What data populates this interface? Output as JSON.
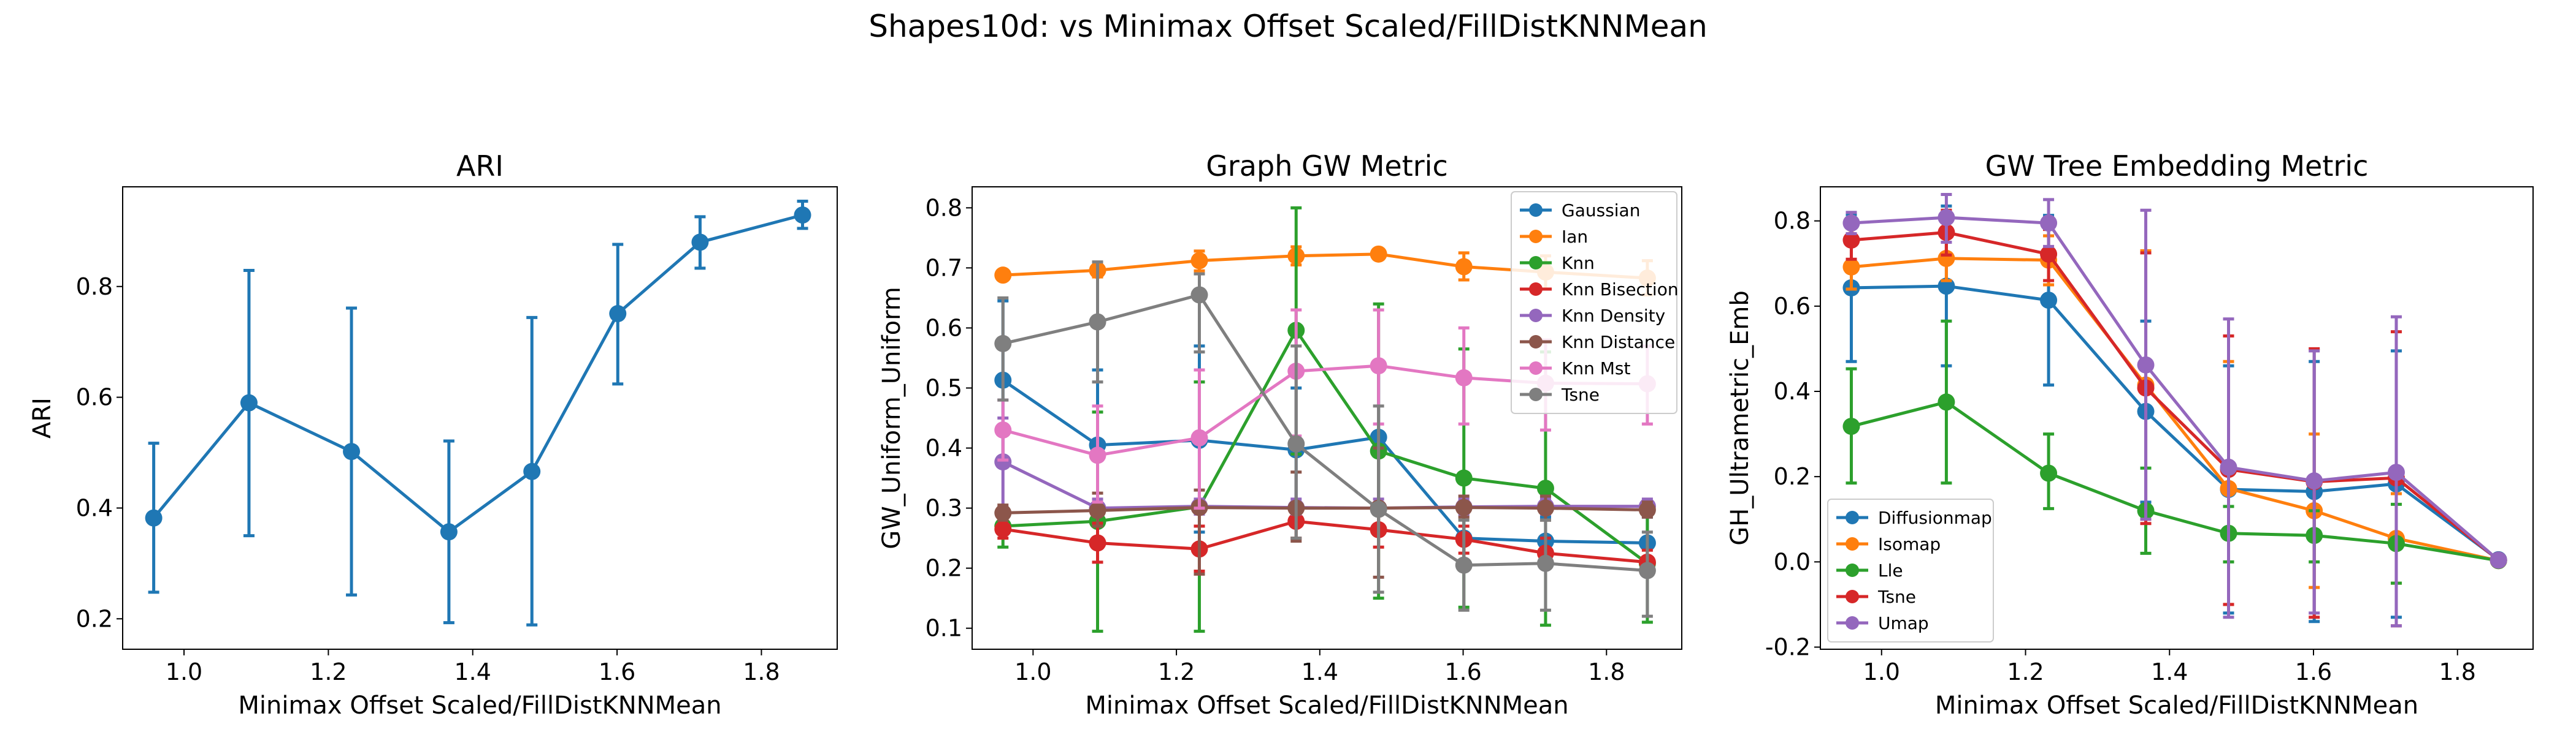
{
  "figure_title": "Shapes10d: vs Minimax Offset Scaled/FillDistKNNMean",
  "colors": {
    "blue": "#1f77b4",
    "orange": "#ff7f0e",
    "green": "#2ca02c",
    "red": "#d62728",
    "purple": "#9467bd",
    "brown": "#8c564b",
    "pink": "#e377c2",
    "gray": "#7f7f7f"
  },
  "chart_data": [
    {
      "type": "line",
      "title": "ARI",
      "xlabel": "Minimax Offset Scaled/FillDistKNNMean",
      "ylabel": "ARI",
      "xlim": [
        0.915,
        1.905
      ],
      "ylim": [
        0.145,
        0.98
      ],
      "xticks": [
        1.0,
        1.2,
        1.4,
        1.6,
        1.8
      ],
      "yticks": [
        0.2,
        0.4,
        0.6,
        0.8
      ],
      "grid": false,
      "legend": null,
      "x": [
        0.958,
        1.09,
        1.232,
        1.367,
        1.482,
        1.601,
        1.715,
        1.857
      ],
      "series": [
        {
          "color": "#1f77b4",
          "values": [
            0.382,
            0.59,
            0.502,
            0.357,
            0.466,
            0.751,
            0.88,
            0.929
          ],
          "err_low": [
            0.248,
            0.35,
            0.243,
            0.193,
            0.189,
            0.624,
            0.833,
            0.905
          ],
          "err_high": [
            0.517,
            0.829,
            0.761,
            0.521,
            0.744,
            0.876,
            0.926,
            0.954
          ]
        }
      ]
    },
    {
      "type": "line",
      "title": "Graph GW Metric",
      "xlabel": "Minimax Offset Scaled/FillDistKNNMean",
      "ylabel": "GW_Uniform_Uniform",
      "xlim": [
        0.915,
        1.905
      ],
      "ylim": [
        0.065,
        0.835
      ],
      "xticks": [
        1.0,
        1.2,
        1.4,
        1.6,
        1.8
      ],
      "yticks": [
        0.1,
        0.2,
        0.3,
        0.4,
        0.5,
        0.6,
        0.7,
        0.8
      ],
      "grid": false,
      "legend": "top-right",
      "x": [
        0.958,
        1.09,
        1.232,
        1.367,
        1.482,
        1.601,
        1.715,
        1.857
      ],
      "series": [
        {
          "name": "Gaussian",
          "color": "#1f77b4",
          "values": [
            0.513,
            0.405,
            0.413,
            0.397,
            0.418,
            0.25,
            0.245,
            0.242
          ],
          "err_low": [
            0.385,
            0.29,
            0.26,
            0.3,
            0.3,
            0.205,
            0.21,
            0.2
          ],
          "err_high": [
            0.645,
            0.53,
            0.57,
            0.5,
            0.53,
            0.3,
            0.285,
            0.285
          ]
        },
        {
          "name": "Ian",
          "color": "#ff7f0e",
          "values": [
            0.688,
            0.696,
            0.712,
            0.72,
            0.723,
            0.702,
            0.693,
            0.683
          ],
          "err_low": [
            0.68,
            0.685,
            0.695,
            0.705,
            0.715,
            0.68,
            0.665,
            0.655
          ],
          "err_high": [
            0.696,
            0.708,
            0.728,
            0.735,
            0.731,
            0.725,
            0.72,
            0.712
          ]
        },
        {
          "name": "Knn",
          "color": "#2ca02c",
          "values": [
            0.27,
            0.278,
            0.302,
            0.596,
            0.395,
            0.35,
            0.333,
            0.208
          ],
          "err_low": [
            0.235,
            0.095,
            0.095,
            0.39,
            0.15,
            0.135,
            0.105,
            0.11
          ],
          "err_high": [
            0.3,
            0.46,
            0.51,
            0.8,
            0.64,
            0.565,
            0.56,
            0.31
          ]
        },
        {
          "name": "Knn Bisection",
          "color": "#d62728",
          "values": [
            0.265,
            0.242,
            0.232,
            0.278,
            0.264,
            0.248,
            0.225,
            0.21
          ],
          "err_low": [
            0.25,
            0.21,
            0.195,
            0.25,
            0.235,
            0.225,
            0.2,
            0.19
          ],
          "err_high": [
            0.28,
            0.275,
            0.27,
            0.305,
            0.295,
            0.27,
            0.25,
            0.23
          ]
        },
        {
          "name": "Knn Density",
          "color": "#9467bd",
          "values": [
            0.377,
            0.3,
            0.303,
            0.301,
            0.3,
            0.302,
            0.303,
            0.303
          ],
          "err_low": [
            0.3,
            0.29,
            0.29,
            0.29,
            0.29,
            0.29,
            0.29,
            0.29
          ],
          "err_high": [
            0.45,
            0.315,
            0.315,
            0.315,
            0.315,
            0.315,
            0.315,
            0.315
          ]
        },
        {
          "name": "Knn Distance",
          "color": "#8c564b",
          "values": [
            0.292,
            0.296,
            0.301,
            0.3,
            0.3,
            0.301,
            0.3,
            0.297
          ],
          "err_low": [
            0.28,
            0.27,
            0.19,
            0.245,
            0.185,
            0.285,
            0.28,
            0.285
          ],
          "err_high": [
            0.305,
            0.325,
            0.33,
            0.36,
            0.4,
            0.32,
            0.32,
            0.31
          ]
        },
        {
          "name": "Knn Mst",
          "color": "#e377c2",
          "values": [
            0.43,
            0.388,
            0.417,
            0.528,
            0.537,
            0.517,
            0.508,
            0.507
          ],
          "err_low": [
            0.38,
            0.31,
            0.3,
            0.42,
            0.44,
            0.44,
            0.43,
            0.44
          ],
          "err_high": [
            0.48,
            0.47,
            0.53,
            0.63,
            0.63,
            0.6,
            0.58,
            0.57
          ]
        },
        {
          "name": "Tsne",
          "color": "#7f7f7f",
          "values": [
            0.574,
            0.61,
            0.655,
            0.407,
            0.298,
            0.205,
            0.208,
            0.196
          ],
          "err_low": [
            0.48,
            0.51,
            0.56,
            0.25,
            0.16,
            0.13,
            0.13,
            0.12
          ],
          "err_high": [
            0.65,
            0.71,
            0.69,
            0.57,
            0.47,
            0.28,
            0.28,
            0.26
          ]
        }
      ]
    },
    {
      "type": "line",
      "title": "GW Tree Embedding Metric",
      "xlabel": "Minimax Offset Scaled/FillDistKNNMean",
      "ylabel": "GH_Ultrametric_Emb",
      "xlim": [
        0.915,
        1.905
      ],
      "ylim": [
        -0.205,
        0.88
      ],
      "xticks": [
        1.0,
        1.2,
        1.4,
        1.6,
        1.8
      ],
      "yticks": [
        -0.2,
        0.0,
        0.2,
        0.4,
        0.6,
        0.8
      ],
      "grid": false,
      "legend": "bottom-left",
      "x": [
        0.958,
        1.09,
        1.232,
        1.367,
        1.482,
        1.601,
        1.715,
        1.857
      ],
      "series": [
        {
          "name": "Diffusionmap",
          "color": "#1f77b4",
          "values": [
            0.643,
            0.647,
            0.614,
            0.353,
            0.17,
            0.165,
            0.183,
            0.005
          ],
          "err_low": [
            0.47,
            0.46,
            0.415,
            0.14,
            -0.12,
            -0.14,
            -0.13,
            0.0
          ],
          "err_high": [
            0.815,
            0.835,
            0.813,
            0.565,
            0.46,
            0.47,
            0.495,
            0.01
          ]
        },
        {
          "name": "Isomap",
          "color": "#ff7f0e",
          "values": [
            0.692,
            0.712,
            0.708,
            0.415,
            0.172,
            0.12,
            0.055,
            0.003
          ],
          "err_low": [
            0.64,
            0.66,
            0.65,
            0.1,
            -0.1,
            -0.06,
            -0.05,
            0.0
          ],
          "err_high": [
            0.745,
            0.765,
            0.765,
            0.73,
            0.47,
            0.3,
            0.16,
            0.006
          ]
        },
        {
          "name": "Lle",
          "color": "#2ca02c",
          "values": [
            0.318,
            0.375,
            0.208,
            0.12,
            0.067,
            0.062,
            0.043,
            0.003
          ],
          "err_low": [
            0.185,
            0.185,
            0.125,
            0.02,
            0.0,
            0.0,
            -0.05,
            0.0
          ],
          "err_high": [
            0.453,
            0.565,
            0.3,
            0.22,
            0.13,
            0.12,
            0.135,
            0.006
          ]
        },
        {
          "name": "Tsne",
          "color": "#d62728",
          "values": [
            0.755,
            0.773,
            0.722,
            0.408,
            0.217,
            0.188,
            0.197,
            0.004
          ],
          "err_low": [
            0.71,
            0.72,
            0.66,
            0.09,
            -0.1,
            -0.13,
            -0.15,
            0.0
          ],
          "err_high": [
            0.8,
            0.825,
            0.78,
            0.725,
            0.53,
            0.5,
            0.54,
            0.008
          ]
        },
        {
          "name": "Umap",
          "color": "#9467bd",
          "values": [
            0.795,
            0.808,
            0.795,
            0.462,
            0.222,
            0.19,
            0.21,
            0.004
          ],
          "err_low": [
            0.77,
            0.75,
            0.74,
            0.1,
            -0.13,
            -0.12,
            -0.15,
            0.0
          ],
          "err_high": [
            0.82,
            0.862,
            0.85,
            0.825,
            0.57,
            0.495,
            0.575,
            0.008
          ]
        }
      ]
    }
  ]
}
